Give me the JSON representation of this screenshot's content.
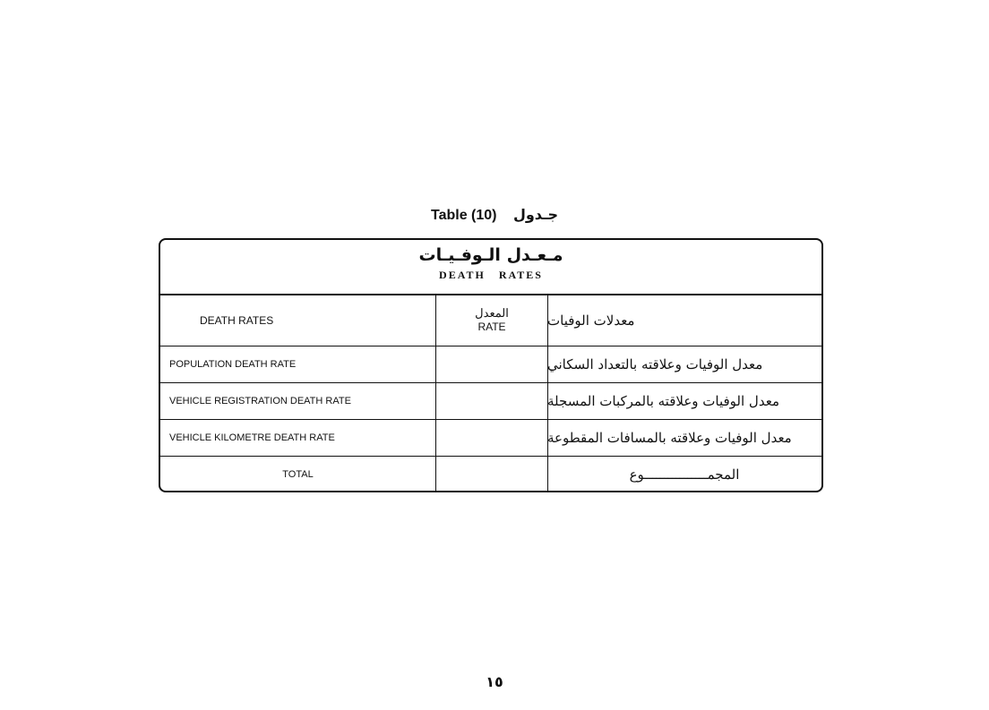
{
  "title": {
    "en": "Table (10)",
    "ar": "جـدول"
  },
  "table": {
    "heading_ar": "مـعـدل الـوفـيـات",
    "heading_en": "DEATH RATES",
    "columns": {
      "en": "DEATH RATES",
      "rate_ar": "المعدل",
      "rate_en": "RATE",
      "ar": "معدلات الوفيات"
    },
    "rows": [
      {
        "en": "POPULATION DEATH RATE",
        "rate": "",
        "ar": "معدل الوفيات وعلاقته بالتعداد السكاني"
      },
      {
        "en": "VEHICLE REGISTRATION DEATH RATE",
        "rate": "",
        "ar": "معدل الوفيات وعلاقته بالمركبات المسجلة"
      },
      {
        "en": "VEHICLE KILOMETRE DEATH RATE",
        "rate": "",
        "ar": "معدل الوفيات وعلاقته بالمسافات المقطوعة"
      },
      {
        "en": "TOTAL",
        "rate": "",
        "ar": "المجمــــــــــــــــوع"
      }
    ]
  },
  "page_number": "١٥"
}
